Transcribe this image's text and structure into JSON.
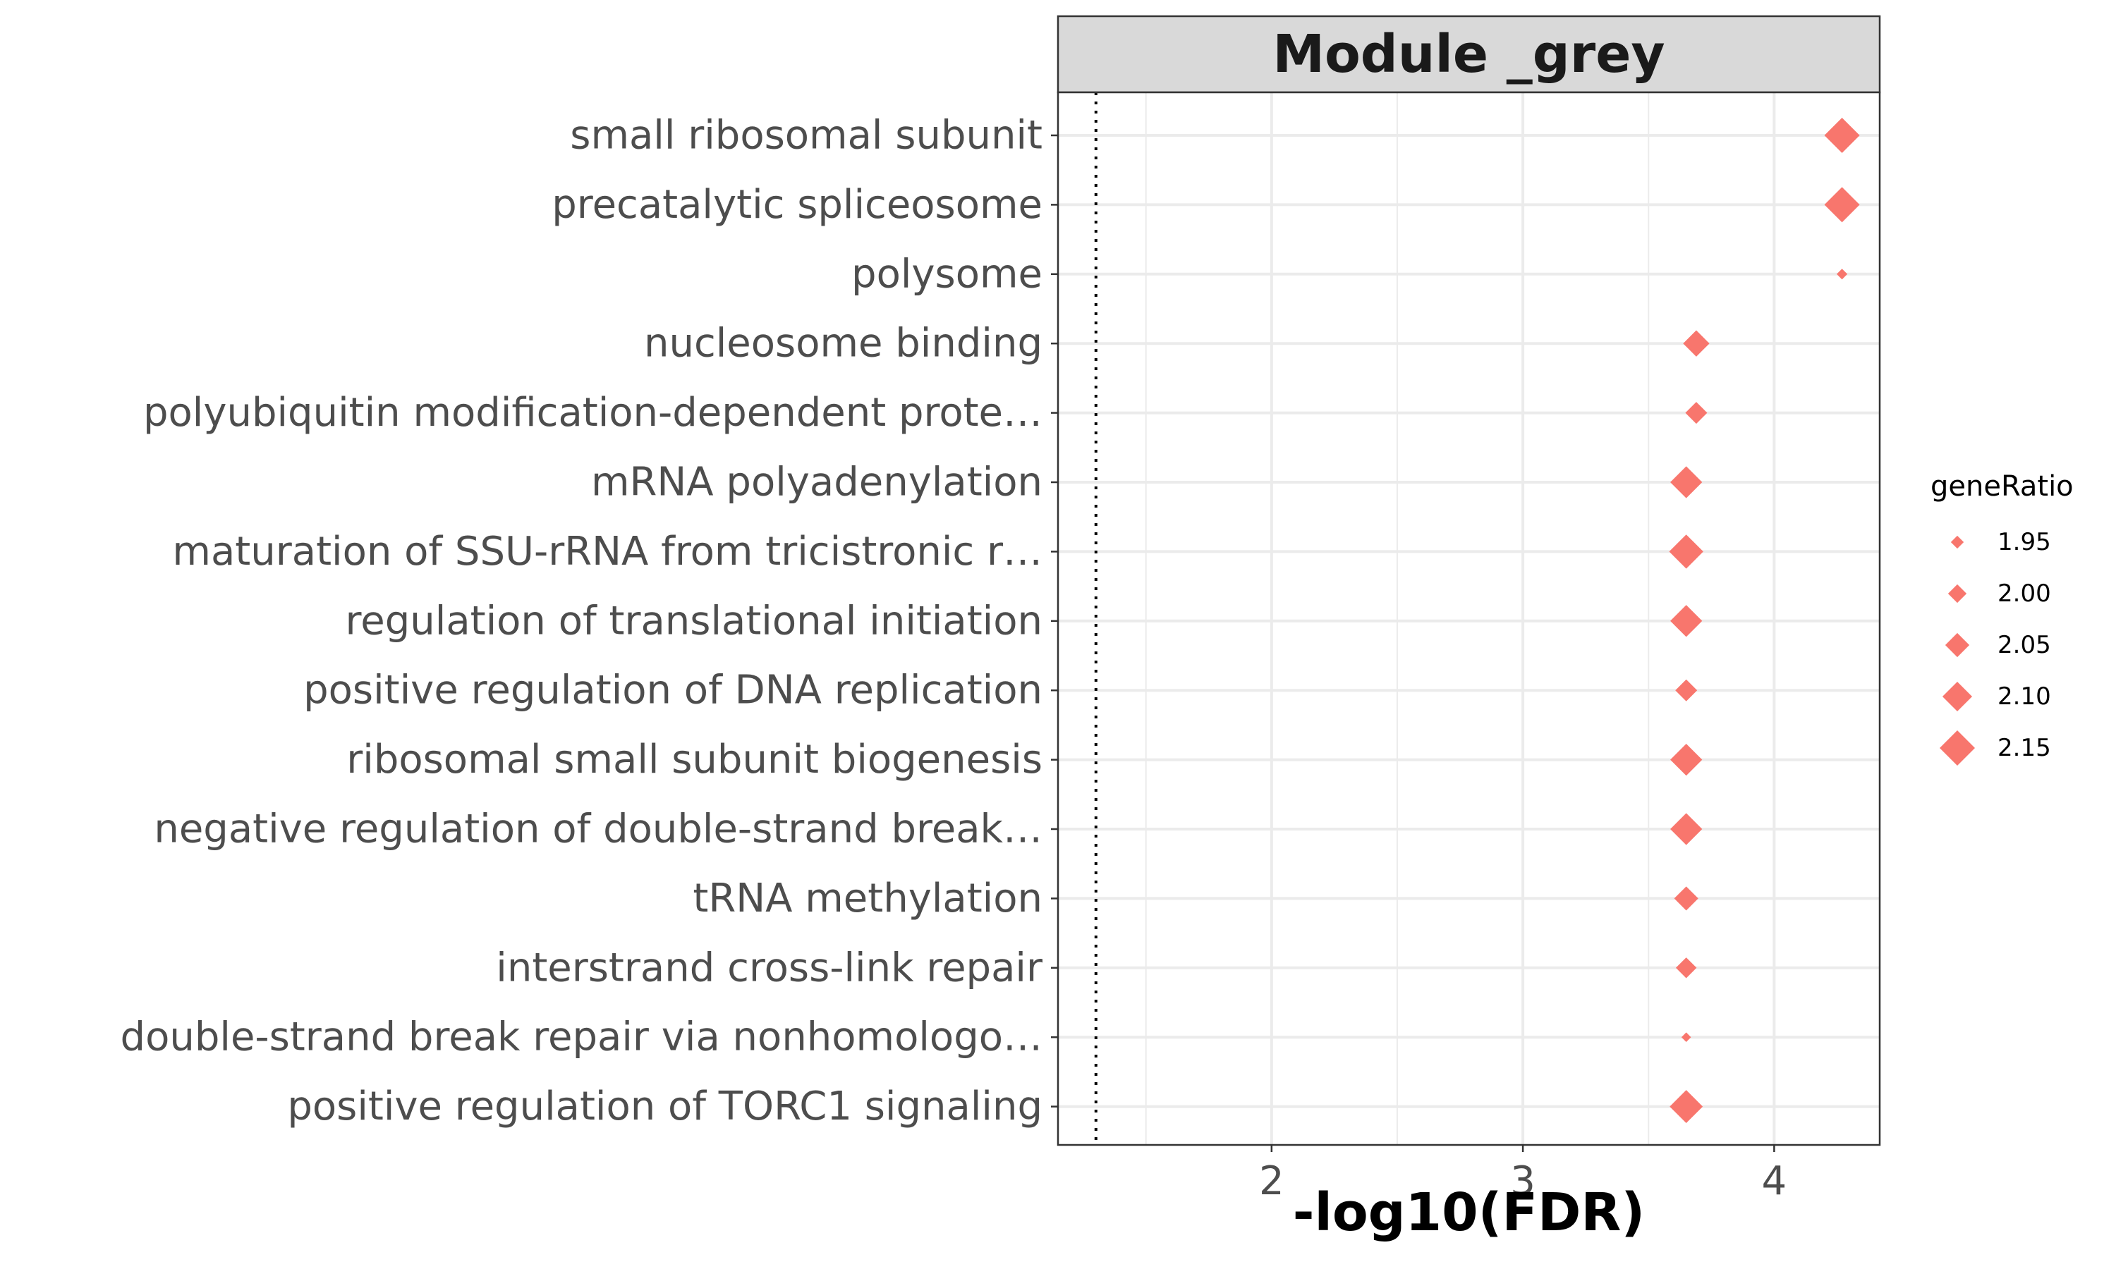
{
  "chart_data": {
    "type": "scatter",
    "facet_title": "Module _grey",
    "xlabel": "-log10(FDR)",
    "ylabel": "",
    "xlim": [
      1.15,
      4.42
    ],
    "x_ticks": [
      2,
      3,
      4
    ],
    "reference_line_x": 1.301,
    "reference_line_style": "dotted",
    "grid": true,
    "point_shape": "diamond",
    "point_color": "#F8766D",
    "categories": [
      "small ribosomal subunit",
      "precatalytic spliceosome",
      "polysome",
      "nucleosome binding",
      "polyubiquitin modification-dependent prote…",
      "mRNA polyadenylation",
      "maturation of SSU-rRNA from tricistronic r…",
      "regulation of translational initiation",
      "positive regulation of DNA replication",
      "ribosomal small subunit biogenesis",
      "negative regulation of double-strand break…",
      "tRNA methylation",
      "interstrand cross-link repair",
      "double-strand break repair via nonhomologo…",
      "positive regulation of TORC1 signaling"
    ],
    "series": [
      {
        "x": [
          4.27,
          4.27,
          4.27,
          3.69,
          3.69,
          3.65,
          3.65,
          3.65,
          3.65,
          3.65,
          3.65,
          3.65,
          3.65,
          3.65,
          3.65
        ],
        "geneRatio": [
          2.15,
          2.15,
          1.93,
          2.07,
          2.03,
          2.12,
          2.14,
          2.12,
          2.03,
          2.12,
          2.12,
          2.05,
          2.02,
          1.92,
          2.13
        ]
      }
    ],
    "legend": {
      "title": "geneRatio",
      "position": "right",
      "entries": [
        "1.95",
        "2.00",
        "2.05",
        "2.10",
        "2.15"
      ],
      "values": [
        1.95,
        2.0,
        2.05,
        2.1,
        2.15
      ]
    }
  }
}
